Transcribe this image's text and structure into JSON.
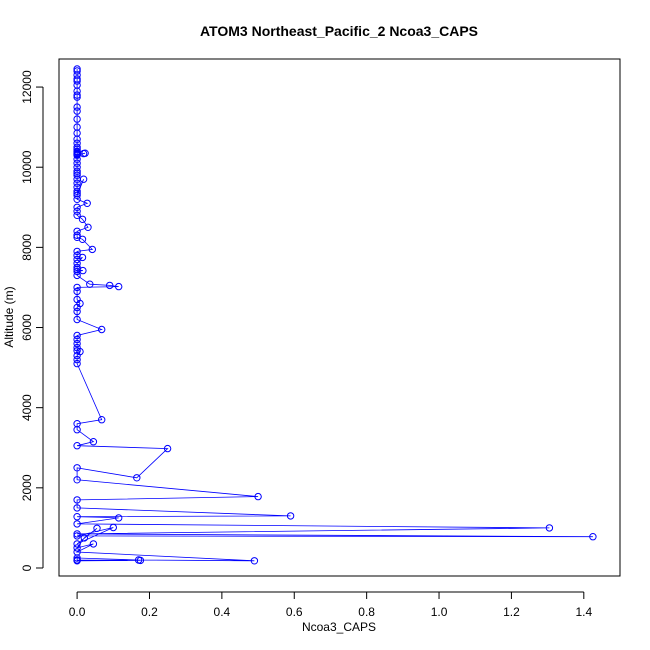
{
  "chart_data": {
    "type": "line",
    "title": "ATOM3 Northeast_Pacific_2 Ncoa3_CAPS",
    "xlabel": "Ncoa3_CAPS",
    "ylabel": "Altitude (m)",
    "xlim": [
      -0.05,
      1.5
    ],
    "ylim": [
      -200,
      12700
    ],
    "x_ticks": [
      0.0,
      0.2,
      0.4,
      0.6,
      0.8,
      1.0,
      1.2,
      1.4
    ],
    "x_tick_labels": [
      "0.0",
      "0.2",
      "0.4",
      "0.6",
      "0.8",
      "1.0",
      "1.2",
      "1.4"
    ],
    "y_ticks": [
      0,
      2000,
      4000,
      6000,
      8000,
      10000,
      12000
    ],
    "y_tick_labels": [
      "0",
      "2000",
      "4000",
      "6000",
      "8000",
      "10000",
      "12000"
    ],
    "grid": false,
    "legend": "none",
    "marker": "open-circle",
    "color": "#0000ff",
    "series": [
      {
        "x": [
          0.0,
          0.0,
          0.0,
          0.0,
          0.0,
          0.0,
          0.0,
          0.0,
          0.0,
          0.0,
          0.0,
          0.0,
          0.0,
          0.0,
          0.0,
          0.0,
          0.0,
          0.0,
          0.0,
          0.0,
          0.0,
          0.0,
          0.0,
          0.0,
          0.018,
          0.022,
          0.0,
          0.0,
          0.0,
          0.0,
          0.0,
          0.0,
          0.0,
          0.0,
          0.0,
          0.0,
          0.0,
          0.0,
          0.018,
          0.0,
          0.0,
          0.028,
          0.0,
          0.0,
          0.0,
          0.015,
          0.03,
          0.0,
          0.0,
          0.0,
          0.015,
          0.042,
          0.0,
          0.0,
          0.0,
          0.015,
          0.0,
          0.0,
          0.0,
          0.016,
          0.0,
          0.0,
          0.035,
          0.09,
          0.115,
          0.0,
          0.0,
          0.0,
          0.008,
          0.0,
          0.0,
          0.0,
          0.068,
          0.0,
          0.0,
          0.0,
          0.0,
          0.0,
          0.008,
          0.0,
          0.0,
          0.0,
          0.068,
          0.0,
          0.0,
          0.045,
          0.0,
          0.25,
          0.165,
          0.0,
          0.0,
          0.5,
          0.0,
          0.0,
          0.59,
          0.0,
          0.115,
          0.0,
          1.305,
          0.0,
          1.425,
          0.0,
          0.1,
          0.0,
          0.055,
          0.02,
          0.0,
          0.045,
          0.0,
          0.49,
          0.17,
          0.0,
          0.0,
          0.175,
          0.0,
          0.0
        ],
        "y": [
          12450,
          12400,
          12300,
          12200,
          12150,
          12050,
          11900,
          11800,
          11750,
          11500,
          11400,
          11200,
          11000,
          10850,
          10700,
          10600,
          10500,
          10450,
          10400,
          10380,
          10350,
          10330,
          10320,
          10330,
          10340,
          10350,
          10300,
          10200,
          10100,
          10000,
          9900,
          9850,
          9800,
          9700,
          9600,
          9500,
          9400,
          9350,
          9700,
          9300,
          9200,
          9100,
          9000,
          8900,
          8800,
          8700,
          8500,
          8400,
          8300,
          8250,
          8200,
          7950,
          7900,
          7800,
          7700,
          7750,
          7600,
          7500,
          7450,
          7420,
          7400,
          7300,
          7080,
          7050,
          7020,
          7000,
          6900,
          6700,
          6600,
          6500,
          6400,
          6200,
          5950,
          5800,
          5700,
          5600,
          5500,
          5420,
          5400,
          5300,
          5200,
          5100,
          3700,
          3600,
          3450,
          3150,
          3050,
          2980,
          2250,
          2500,
          2200,
          1780,
          1700,
          1500,
          1300,
          1280,
          1250,
          1100,
          1000,
          850,
          780,
          800,
          1010,
          600,
          990,
          750,
          500,
          600,
          400,
          180,
          200,
          250,
          200,
          190,
          180,
          200
        ]
      }
    ]
  }
}
